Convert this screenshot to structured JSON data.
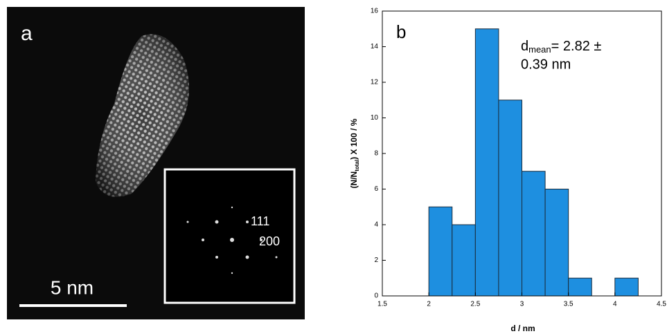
{
  "image_panel": {
    "panel_label": "a",
    "scale_bar": "5 nm",
    "inset_labels": [
      "111",
      "200"
    ]
  },
  "chart_data": {
    "type": "histogram",
    "panel_label": "b",
    "annotation": {
      "symbol": "d",
      "subscript": "mean",
      "text": "= 2.82 ±",
      "line2": "0.39 nm"
    },
    "xlabel": "d / nm",
    "ylabel": {
      "main": "(N/N",
      "subscript": "total",
      "rest": ") X 100 / %"
    },
    "bins": [
      2,
      2.25,
      2.5,
      2.75,
      3,
      3.25,
      3.5,
      3.75,
      4,
      4.25
    ],
    "counts": [
      5,
      4,
      15,
      11,
      7,
      6,
      1,
      0,
      1
    ],
    "color": "#1e8fe0",
    "xlim": [
      1.5,
      4.5
    ],
    "xticks": [
      1.5,
      2,
      2.5,
      3,
      3.5,
      4,
      4.5
    ],
    "ylim": [
      0,
      16
    ],
    "yticks": [
      0,
      2,
      4,
      6,
      8,
      10,
      12,
      14,
      16
    ]
  }
}
